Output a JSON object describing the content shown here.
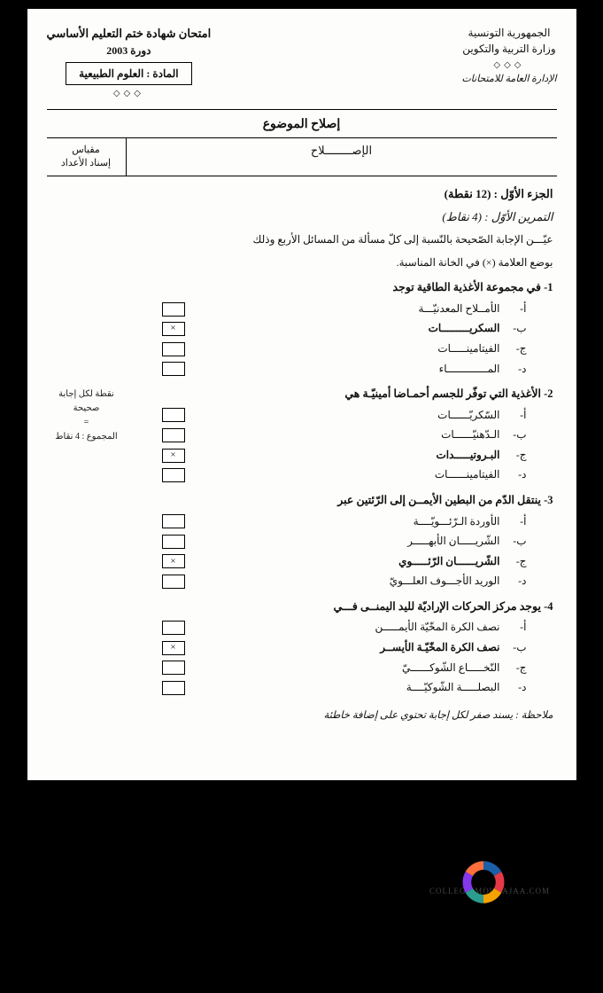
{
  "header": {
    "right1": "الجمهورية التونسية",
    "right2": "وزارة التربية والتكوين",
    "right3": "الإدارة العامة للامتحانات",
    "left1": "امتحان شهادة ختم التعليم الأساسي",
    "left2": "دورة 2003",
    "subject_label": "المادة : العلوم الطبيعية",
    "diamonds": "◇◇◇"
  },
  "topic_title": "إصلاح الموضوع",
  "table": {
    "scale_title1": "مقياس",
    "scale_title2": "إسناد الأعداد",
    "correction": "الإصــــــــلاح"
  },
  "part_title": "الجزء الأوّل : (12 نقطة)",
  "exercise_title": "التمرين الأوّل : (4 نقاط)",
  "instruction1": "عيّـــن الإجابة الصّحيحة بالنّسبة إلى كلّ مسألة من المسائل الأربع وذلك",
  "instruction2": "بوضع العلامة (×) في الخانة المناسبة.",
  "side": {
    "line1": "نقطة لكل إجابة صحيحة",
    "line2": "=",
    "line3": "المجموع : 4 نقاط"
  },
  "questions": [
    {
      "title": "1- في مجموعة الأغذية الطاقية توجد",
      "options": [
        {
          "l": "أ-",
          "t": "الأمــلاح المعدنيّـــة",
          "c": false
        },
        {
          "l": "ب-",
          "t": "السكريـــــــــات",
          "c": true
        },
        {
          "l": "ج-",
          "t": "الفيتامينـــــات",
          "c": false
        },
        {
          "l": "د-",
          "t": "المـــــــــــــاء",
          "c": false
        }
      ]
    },
    {
      "title": "2- الأغذية التي توفّر للجسم أحمـاضا أمينيّـة هي",
      "options": [
        {
          "l": "أ-",
          "t": "السّكريّــــــات",
          "c": false
        },
        {
          "l": "ب-",
          "t": "الـدّهنيّــــــات",
          "c": false
        },
        {
          "l": "ج-",
          "t": "البـروتيـــــدات",
          "c": true
        },
        {
          "l": "د-",
          "t": "الفيتامينــــــات",
          "c": false
        }
      ]
    },
    {
      "title": "3- ينتقل الدّم من البطين الأيمــن إلى الرّئتين عبر",
      "options": [
        {
          "l": "أ-",
          "t": "الأوردة الـرّئـــويّــــة",
          "c": false
        },
        {
          "l": "ب-",
          "t": "الشّريـــــان الأبهـــــر",
          "c": false
        },
        {
          "l": "ج-",
          "t": "الشّريــــــان الرّئـــــوي",
          "c": true
        },
        {
          "l": "د-",
          "t": "الوريد الأجـــوف العلـــويّ",
          "c": false
        }
      ]
    },
    {
      "title": "4- يوجد مركز الحركات الإراديّة لليد اليمنــى فـــي",
      "options": [
        {
          "l": "أ-",
          "t": "نصف الكرة المخّيّة الأيمـــــن",
          "c": false
        },
        {
          "l": "ب-",
          "t": "نصف الكرة المخّيّـة الأيســر",
          "c": true
        },
        {
          "l": "ج-",
          "t": "النّخـــــاع الشّوكــــــيّ",
          "c": false
        },
        {
          "l": "د-",
          "t": "البصلـــــة الشّوكيّــــة",
          "c": false
        }
      ]
    }
  ],
  "note": "ملاحظة : يسند صفر لكل إجابة تحتوي على إضافة خاطئة",
  "watermark": "COLLEGE.MOURAJAA.COM",
  "colors": {
    "page_bg": "#fdfdfb",
    "text": "#111",
    "border": "#000",
    "logo": [
      "#1b5fa6",
      "#e63946",
      "#f4a300",
      "#2a9d8f",
      "#8338ec",
      "#ff6f3c"
    ]
  }
}
